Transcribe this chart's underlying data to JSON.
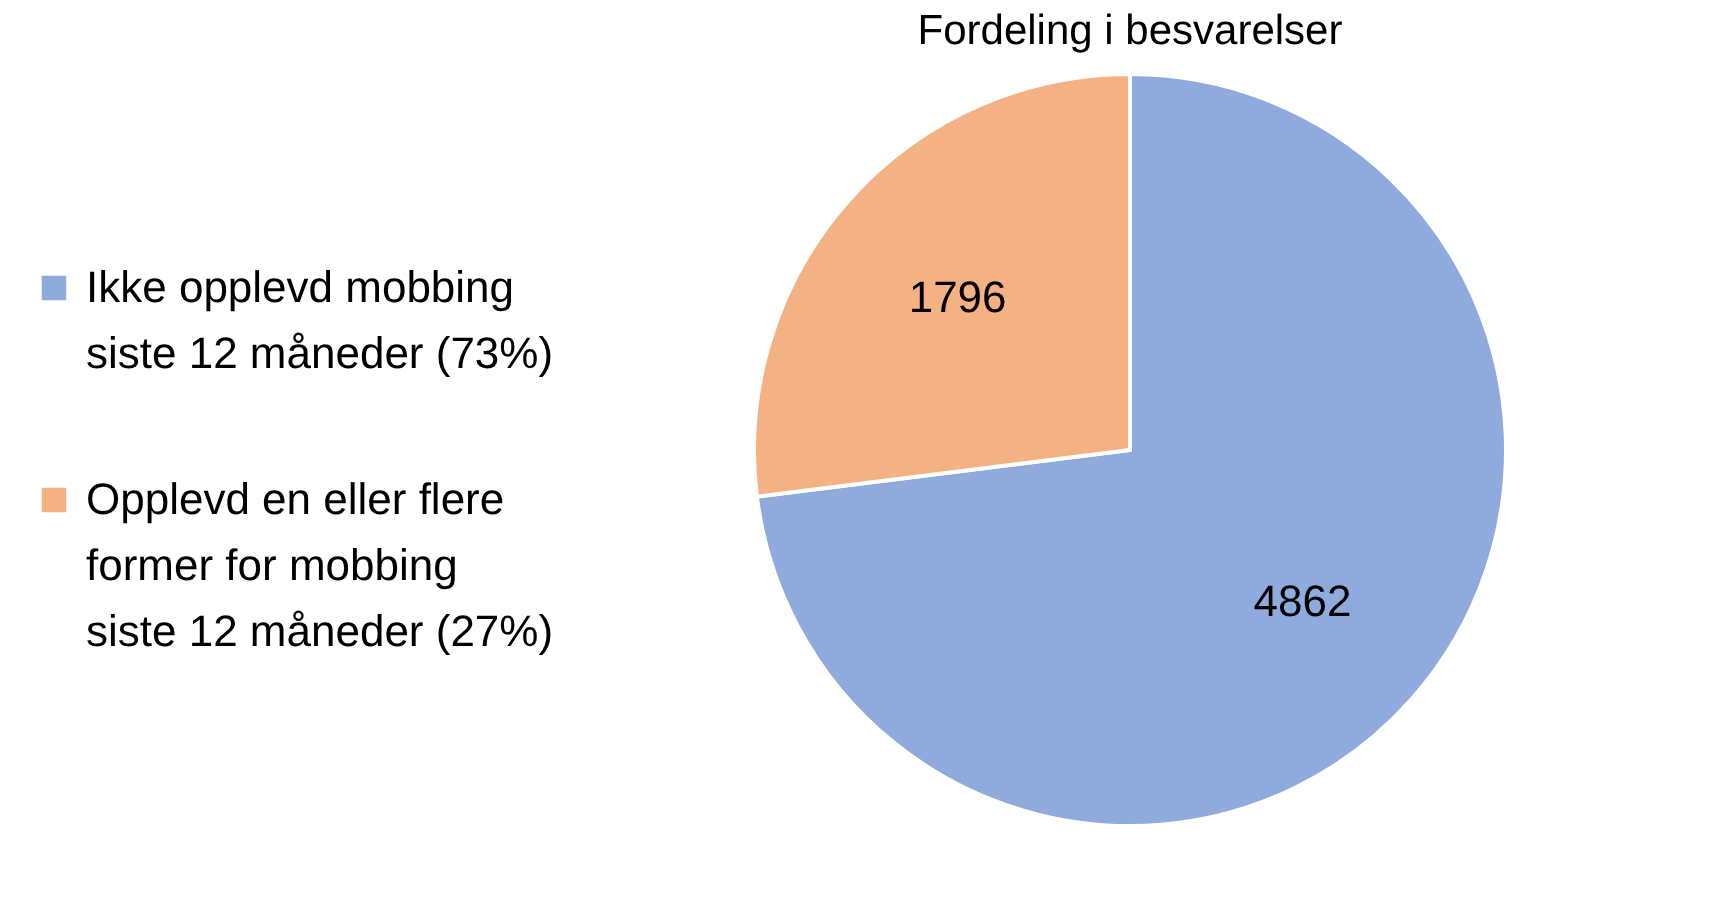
{
  "chart_data": {
    "type": "pie",
    "title": "Fordeling i besvarelser",
    "categories": [
      "Ikke opplevd mobbing siste 12 måneder (73%)",
      "Opplevd en eller flere former for mobbing siste 12 måneder (27%)"
    ],
    "values": [
      4862,
      1796
    ],
    "colors": [
      "#8faadc",
      "#f4b183"
    ],
    "data_labels": true,
    "legend": "left"
  }
}
